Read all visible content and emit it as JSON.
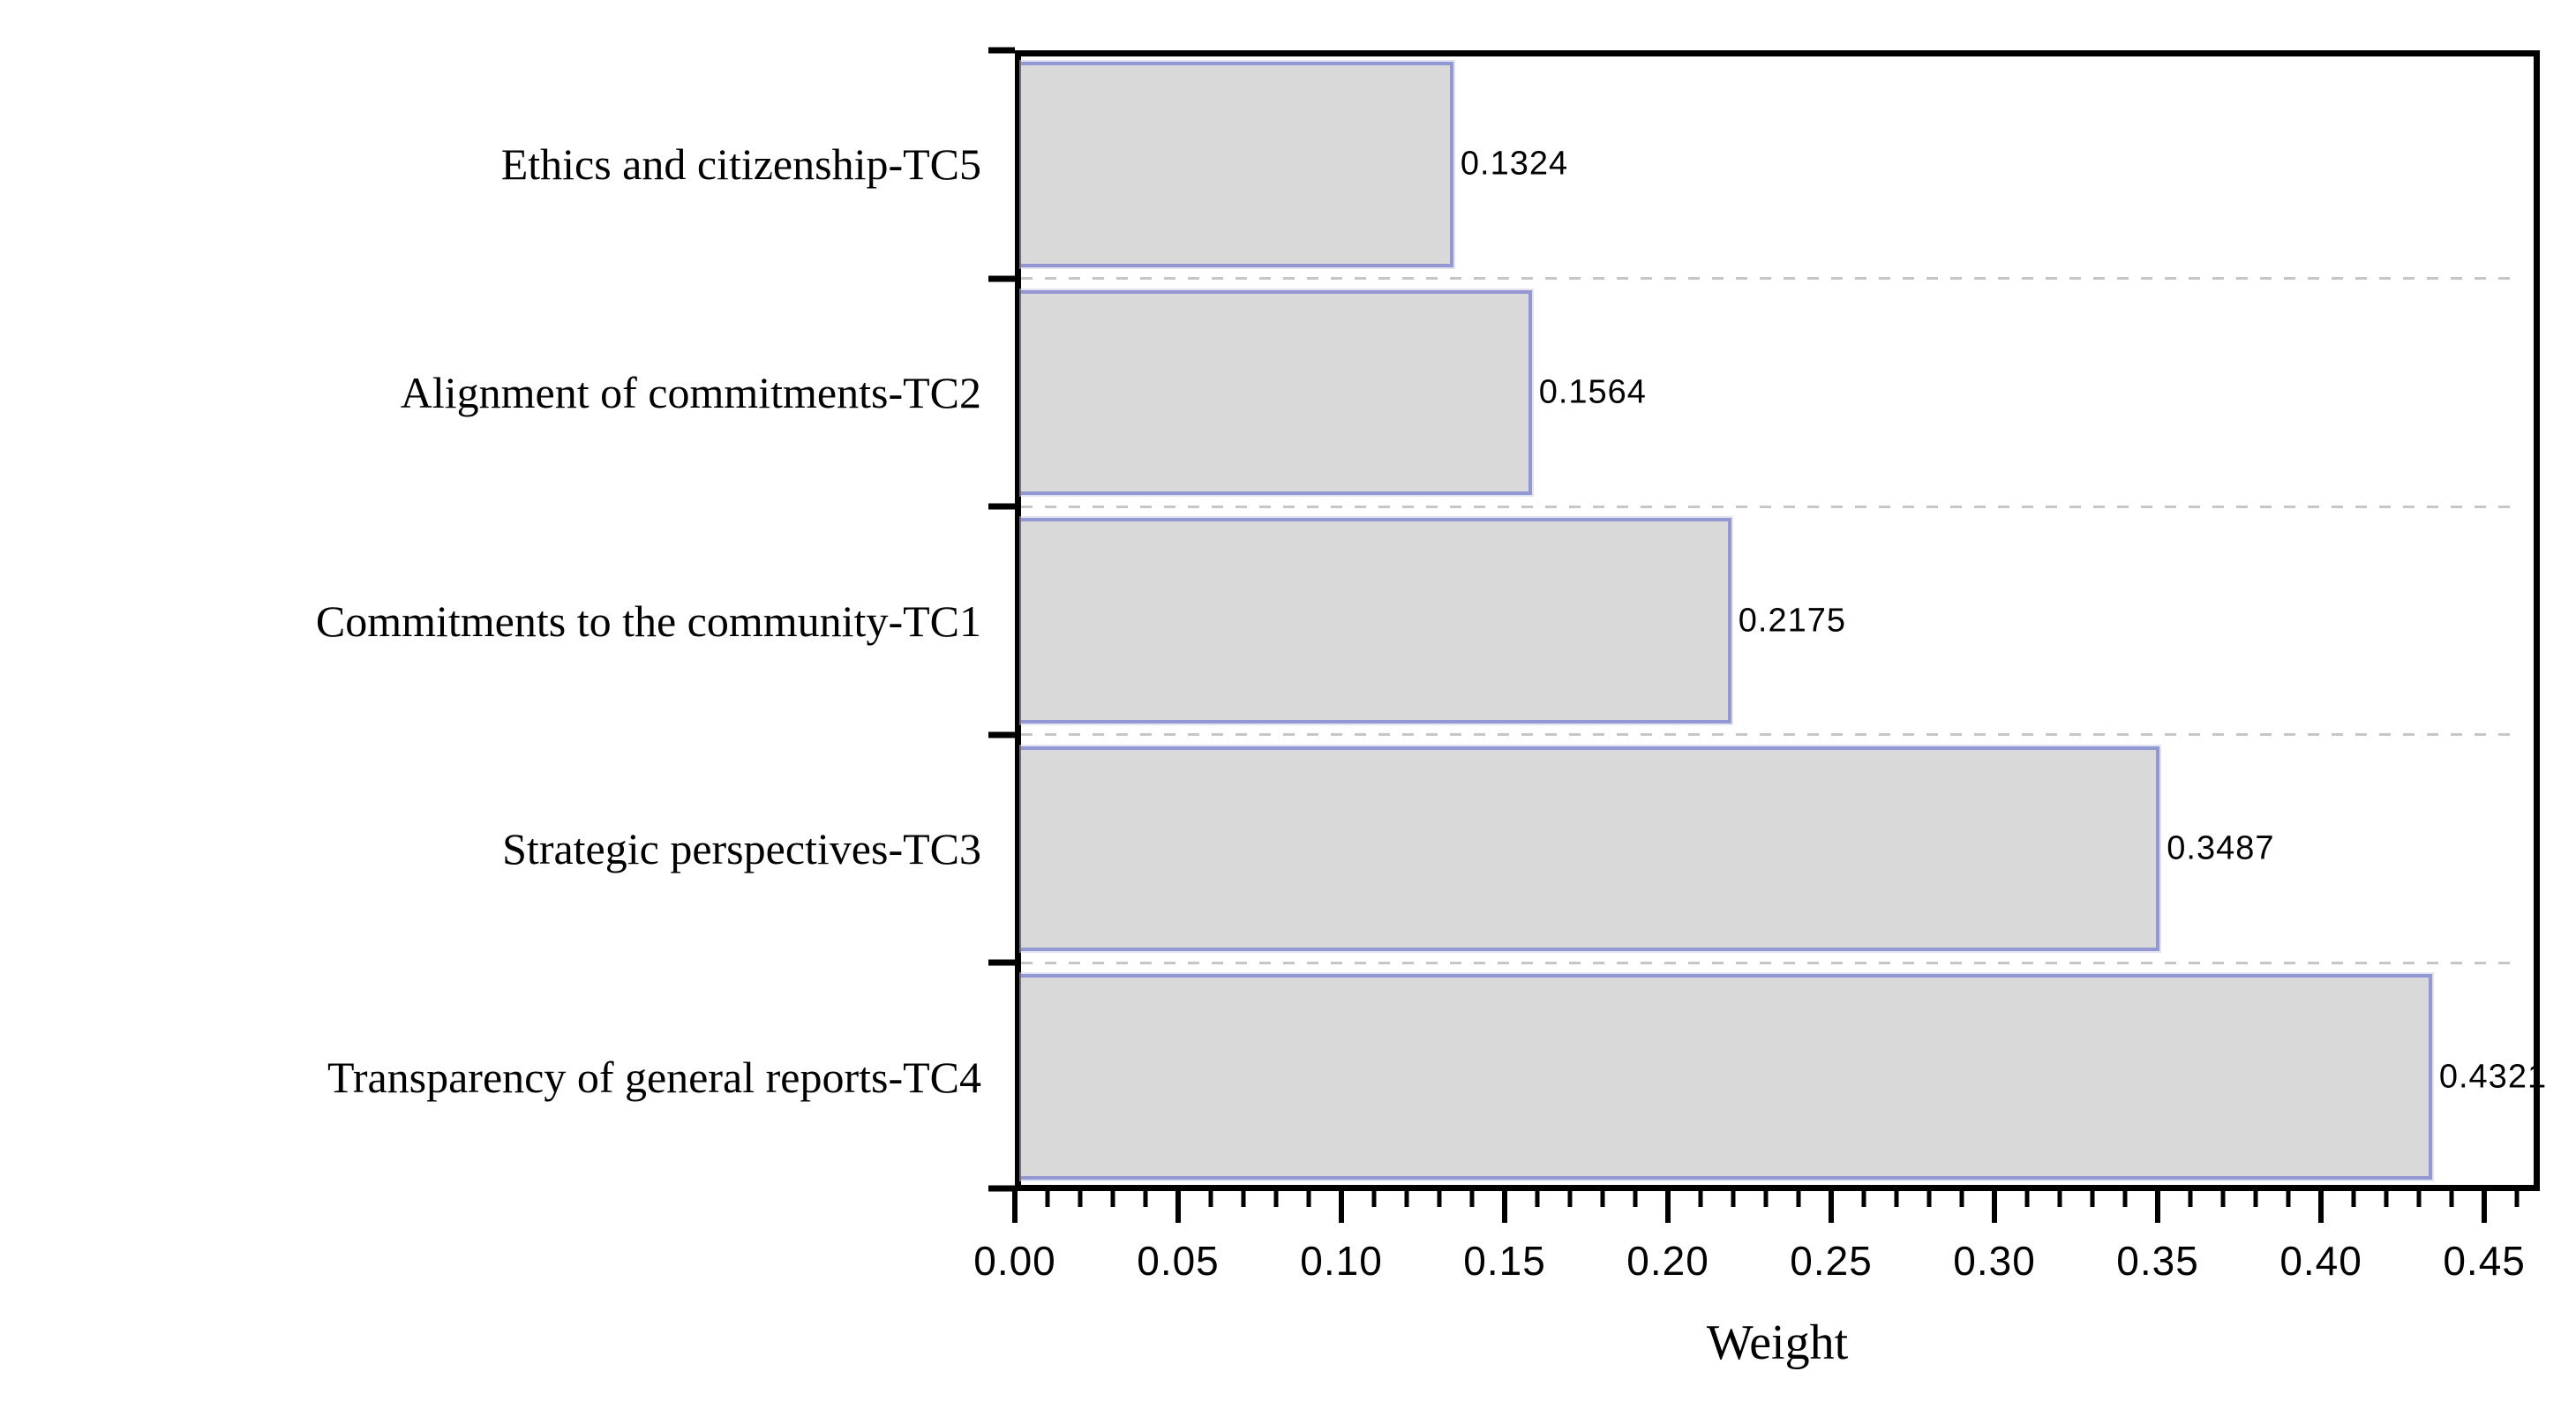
{
  "chart_data": {
    "type": "bar",
    "orientation": "horizontal",
    "title": "",
    "xlabel": "Weight",
    "ylabel": "",
    "categories": [
      "Ethics and citizenship-TC5",
      "Alignment of commitments-TC2",
      "Commitments to the community-TC1",
      "Strategic perspectives-TC3",
      "Transparency of general reports-TC4"
    ],
    "values": [
      0.1324,
      0.1564,
      0.2175,
      0.3487,
      0.4321
    ],
    "value_labels": [
      "0.1324",
      "0.1564",
      "0.2175",
      "0.3487",
      "0.4321"
    ],
    "xlim": [
      0,
      0.467
    ],
    "x_major_tick_step": 0.05,
    "x_minor_tick_step": 0.01,
    "x_tick_labels": [
      "0.00",
      "0.05",
      "0.10",
      "0.15",
      "0.20",
      "0.25",
      "0.30",
      "0.35",
      "0.40",
      "0.45"
    ],
    "grid": "dashed horizontal lines at category boundaries",
    "legend": "none",
    "colors": {
      "bar_fill": "#d9d9d9",
      "bar_border": "#9398d3",
      "gridline": "#c6c6c6",
      "axis": "#000000",
      "text": "#000000",
      "background": "#ffffff"
    }
  }
}
